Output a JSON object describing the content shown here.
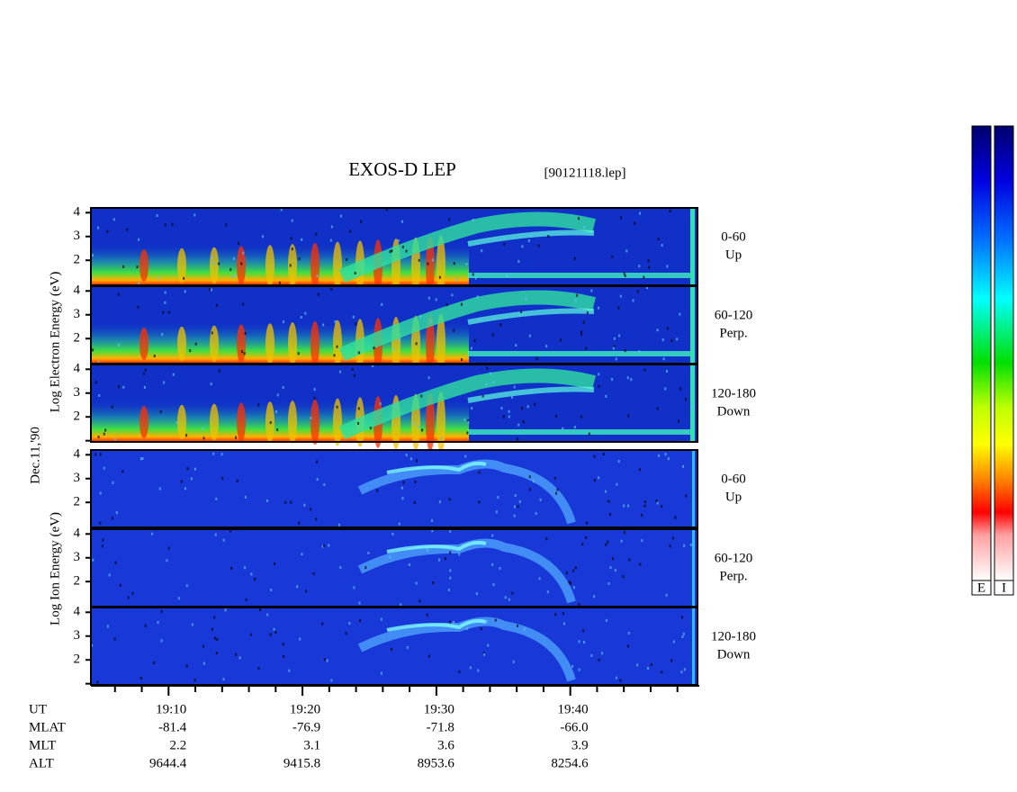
{
  "header": {
    "title": "EXOS-D LEP",
    "file": "[90121118.lep]"
  },
  "left_labels": {
    "electron": "Log Electron Energy (eV)",
    "date": "Dec.11,'90",
    "ion": "Log Ion Energy (eV)"
  },
  "panels": [
    {
      "species": "electron",
      "range": "0-60",
      "direction": "Up",
      "ylim": [
        0.95,
        4.2
      ],
      "yticks": [
        2,
        3,
        4
      ],
      "minor_yticks": []
    },
    {
      "species": "electron",
      "range": "60-120",
      "direction": "Perp.",
      "ylim": [
        0.95,
        4.2
      ],
      "yticks": [
        2,
        3,
        4
      ],
      "minor_yticks": []
    },
    {
      "species": "electron",
      "range": "120-180",
      "direction": "Down",
      "ylim": [
        0.95,
        4.2
      ],
      "yticks": [
        2,
        3,
        4
      ],
      "minor_yticks": [
        1
      ]
    },
    {
      "species": "ion",
      "range": "0-60",
      "direction": "Up",
      "ylim": [
        0.95,
        4.2
      ],
      "yticks": [
        2,
        3,
        4
      ],
      "minor_yticks": []
    },
    {
      "species": "ion",
      "range": "60-120",
      "direction": "Perp.",
      "ylim": [
        0.95,
        4.2
      ],
      "yticks": [
        2,
        3,
        4
      ],
      "minor_yticks": []
    },
    {
      "species": "ion",
      "range": "120-180",
      "direction": "Down",
      "ylim": [
        0.95,
        4.2
      ],
      "yticks": [
        2,
        3,
        4
      ],
      "minor_yticks": [
        1
      ]
    }
  ],
  "x_axis": {
    "xlim": [
      1144.2,
      1189.5
    ],
    "ticks": [
      {
        "value": 1150,
        "label": "19:10"
      },
      {
        "value": 1160,
        "label": "19:20"
      },
      {
        "value": 1170,
        "label": "19:30"
      },
      {
        "value": 1180,
        "label": "19:40"
      }
    ],
    "minor_ticks": [
      1146,
      1148,
      1152,
      1154,
      1156,
      1158,
      1162,
      1164,
      1166,
      1168,
      1172,
      1174,
      1176,
      1178,
      1182,
      1184,
      1186,
      1188
    ]
  },
  "ephemeris": {
    "row_labels": [
      "UT",
      "MLAT",
      "MLT",
      "ALT"
    ],
    "rows": [
      [
        "-81.4",
        "-76.9",
        "-71.8",
        "-66.0"
      ],
      [
        "2.2",
        "3.1",
        "3.6",
        "3.9"
      ],
      [
        "9644.4",
        "9415.8",
        "8953.6",
        "8254.6"
      ]
    ]
  },
  "colorbars": [
    "E",
    "I"
  ]
}
